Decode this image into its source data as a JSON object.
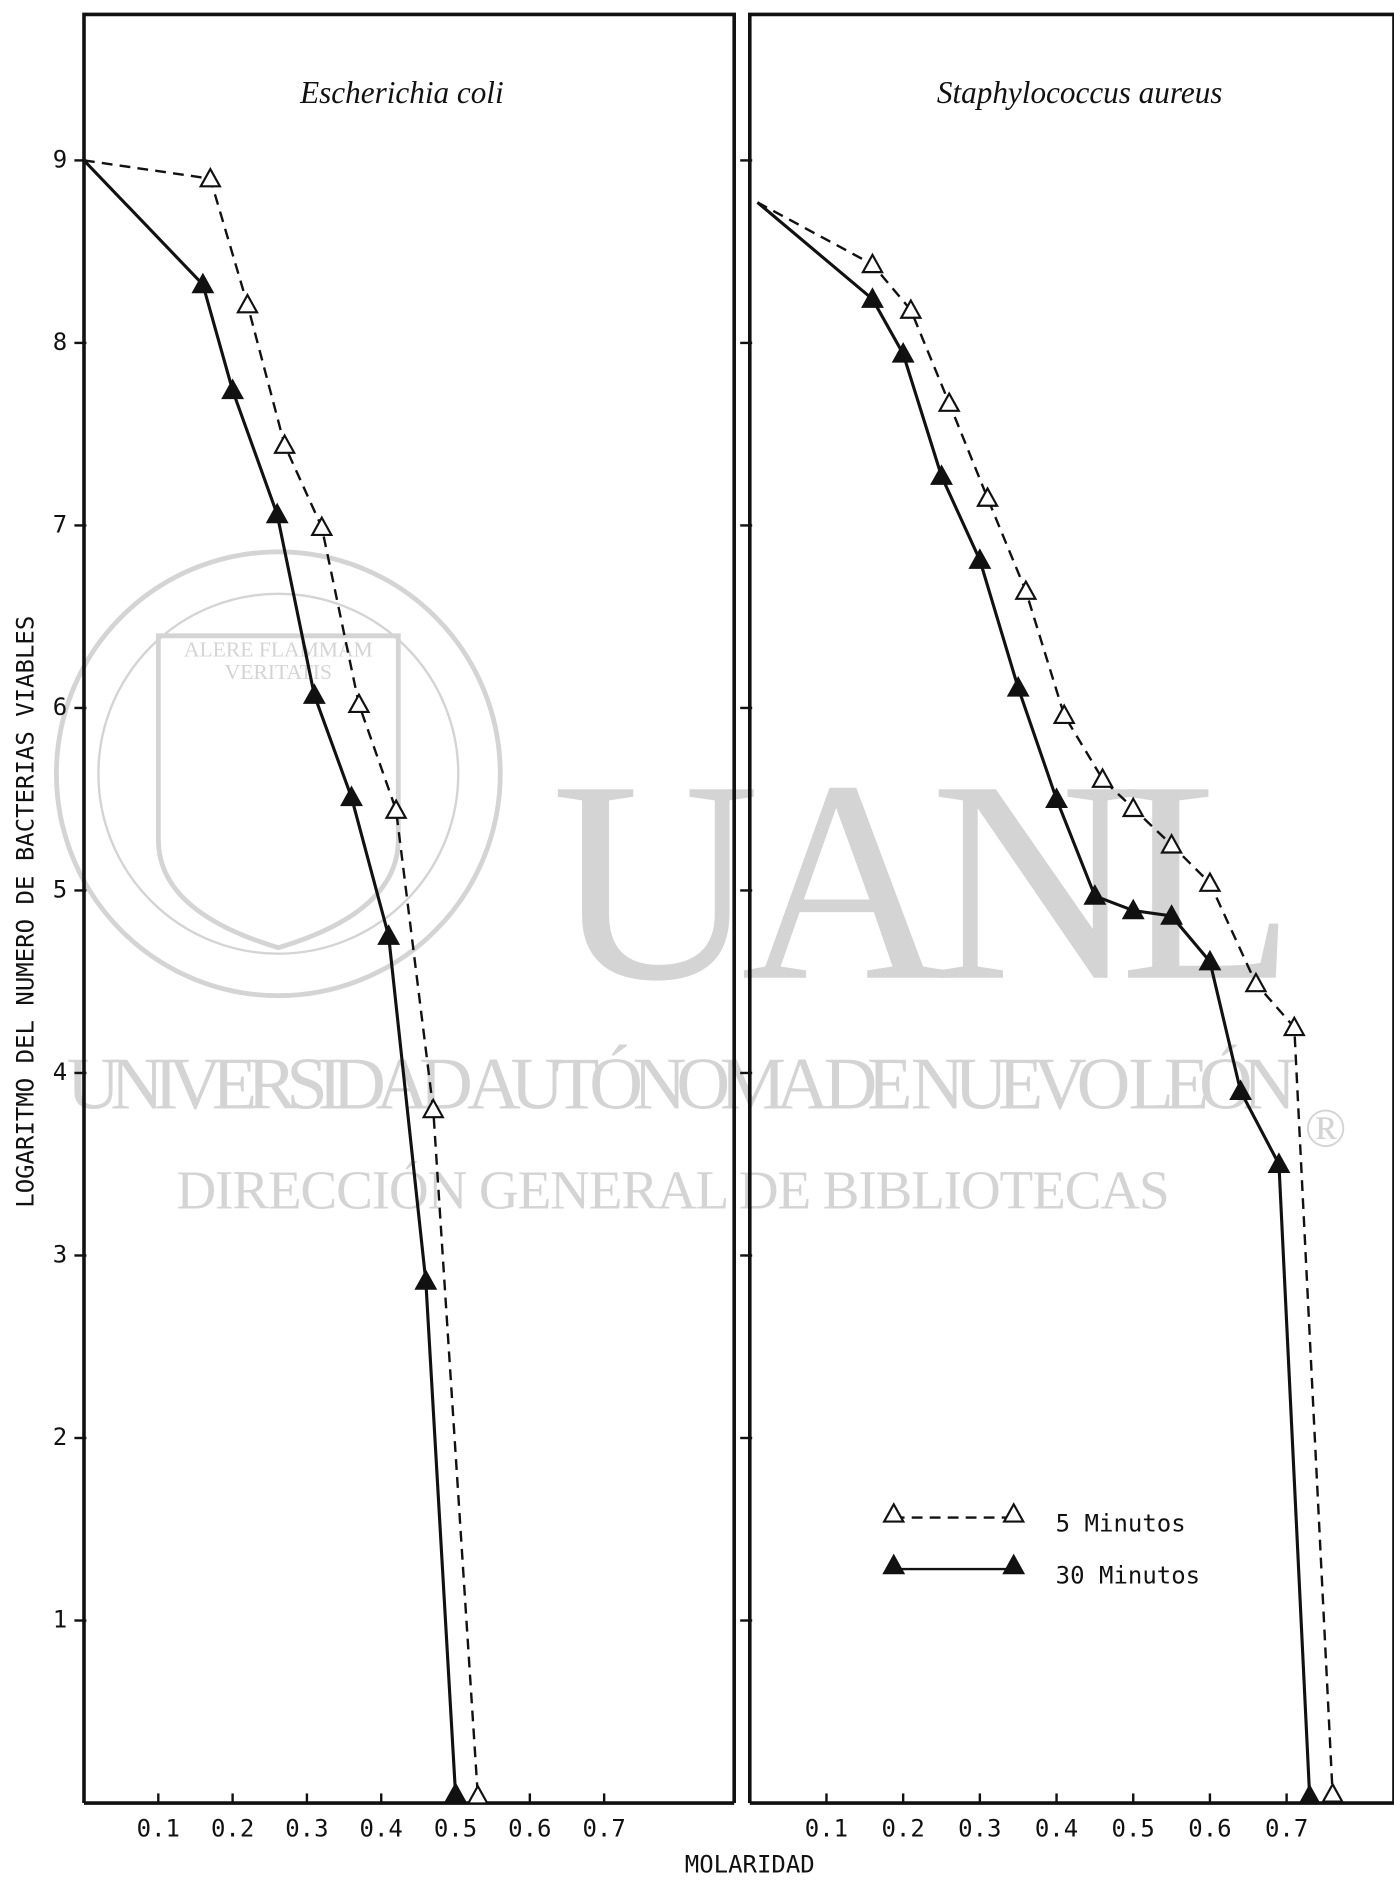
{
  "watermark": {
    "big": "UANL",
    "line1": "UNIVERSIDAD AUTÓNOMA DE NUEVO LEÓN",
    "line2": "DIRECCIÓN GENERAL DE BIBLIOTECAS",
    "mark": "®",
    "motto1": "ALERE FLAMMAM",
    "motto2": "VERITATIS"
  },
  "chart_data": [
    {
      "type": "line",
      "title": "Escherichia coli",
      "ylabel": "LOGARITMO DEL NUMERO DE BACTERIAS VIABLES",
      "xlabel": "MOLARIDAD",
      "xlim": [
        0,
        0.875
      ],
      "xticks": [
        0.1,
        0.2,
        0.3,
        0.4,
        0.5,
        0.6,
        0.7
      ],
      "ylim": [
        0,
        9.8
      ],
      "yticks": [
        1,
        2,
        3,
        4,
        5,
        6,
        7,
        8,
        9
      ],
      "ytick_labels": true,
      "series": [
        {
          "style": "dashed",
          "marker": "open",
          "color": "#111",
          "x": [
            0,
            0.17,
            0.22,
            0.27,
            0.32,
            0.37,
            0.42,
            0.47,
            0.53
          ],
          "values": [
            9.0,
            8.9,
            8.21,
            7.44,
            6.99,
            6.02,
            5.44,
            3.8,
            0.04
          ]
        },
        {
          "style": "solid",
          "marker": "filled",
          "color": "#111",
          "x": [
            0,
            0.16,
            0.2,
            0.26,
            0.31,
            0.36,
            0.41,
            0.46,
            0.5
          ],
          "values": [
            9.0,
            8.32,
            7.74,
            7.06,
            6.07,
            5.51,
            4.75,
            2.86,
            0.05
          ]
        }
      ]
    },
    {
      "type": "line",
      "title": "Staphylococcus aureus",
      "xlim": [
        0,
        0.84
      ],
      "xticks": [
        0.1,
        0.2,
        0.3,
        0.4,
        0.5,
        0.6,
        0.7
      ],
      "ylim": [
        0,
        9.8
      ],
      "yticks": [
        1,
        2,
        3,
        4,
        5,
        6,
        7,
        8,
        9
      ],
      "ytick_labels": false,
      "legend": "lower right",
      "series": [
        {
          "name": "5 Minutos",
          "style": "dashed",
          "marker": "open",
          "color": "#111",
          "x": [
            0.01,
            0.16,
            0.21,
            0.26,
            0.31,
            0.36,
            0.41,
            0.46,
            0.5,
            0.55,
            0.6,
            0.66,
            0.71,
            0.76
          ],
          "values": [
            8.77,
            8.43,
            8.18,
            7.67,
            7.15,
            6.64,
            5.96,
            5.61,
            5.45,
            5.25,
            5.04,
            4.49,
            4.25,
            0.05
          ]
        },
        {
          "name": "30 Minutos",
          "style": "solid",
          "marker": "filled",
          "color": "#111",
          "x": [
            0.01,
            0.16,
            0.2,
            0.25,
            0.3,
            0.35,
            0.4,
            0.45,
            0.5,
            0.55,
            0.6,
            0.64,
            0.69,
            0.73
          ],
          "values": [
            8.77,
            8.24,
            7.94,
            7.27,
            6.81,
            6.11,
            5.5,
            4.97,
            4.89,
            4.86,
            4.61,
            3.9,
            3.5,
            0.04
          ]
        }
      ]
    }
  ]
}
